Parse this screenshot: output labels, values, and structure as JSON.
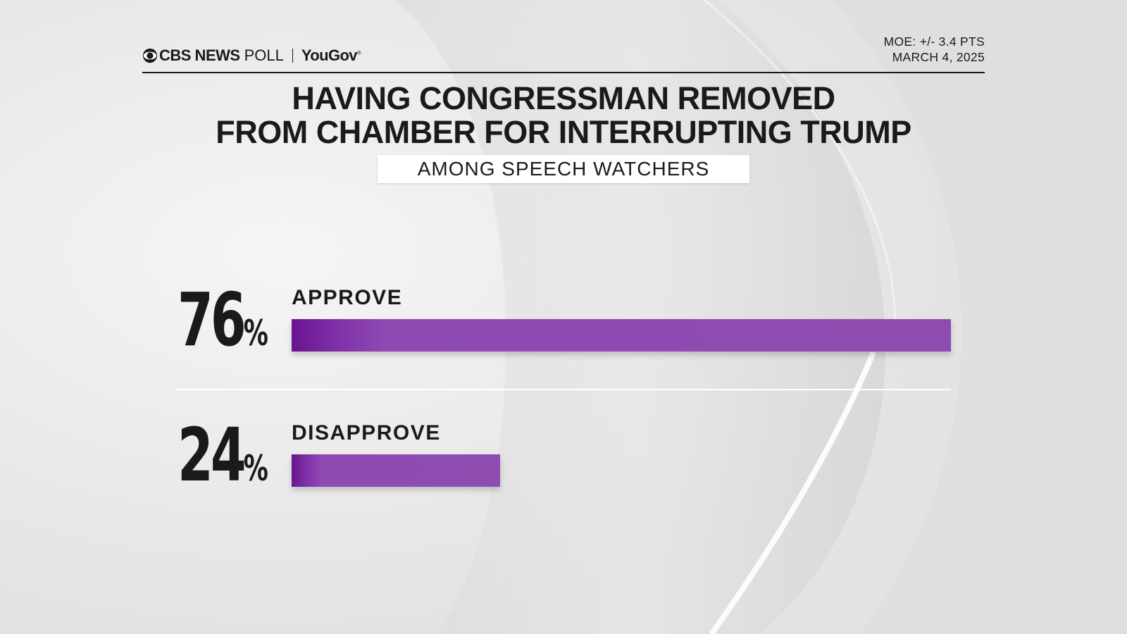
{
  "header": {
    "brand_cbs": "CBS NEWS",
    "brand_poll": "POLL",
    "brand_partner": "YouGov",
    "brand_partner_mark": "®",
    "moe": "MOE: +/- 3.4 PTS",
    "date": "MARCH 4, 2025"
  },
  "colors": {
    "bar": "#8e4cb0",
    "bar_dark": "#6a1390",
    "text": "#1a1a1a"
  },
  "chart_data": {
    "type": "bar",
    "orientation": "horizontal",
    "title": "HAVING CONGRESSMAN REMOVED FROM CHAMBER FOR INTERRUPTING TRUMP",
    "title_line1": "HAVING CONGRESSMAN REMOVED",
    "title_line2": "FROM CHAMBER FOR INTERRUPTING TRUMP",
    "subtitle": "AMONG SPEECH WATCHERS",
    "categories": [
      "APPROVE",
      "DISAPPROVE"
    ],
    "values": [
      76,
      24
    ],
    "value_labels": [
      "76",
      "24"
    ],
    "unit": "%",
    "xlim": [
      0,
      76
    ],
    "grid": false,
    "legend": "none"
  }
}
